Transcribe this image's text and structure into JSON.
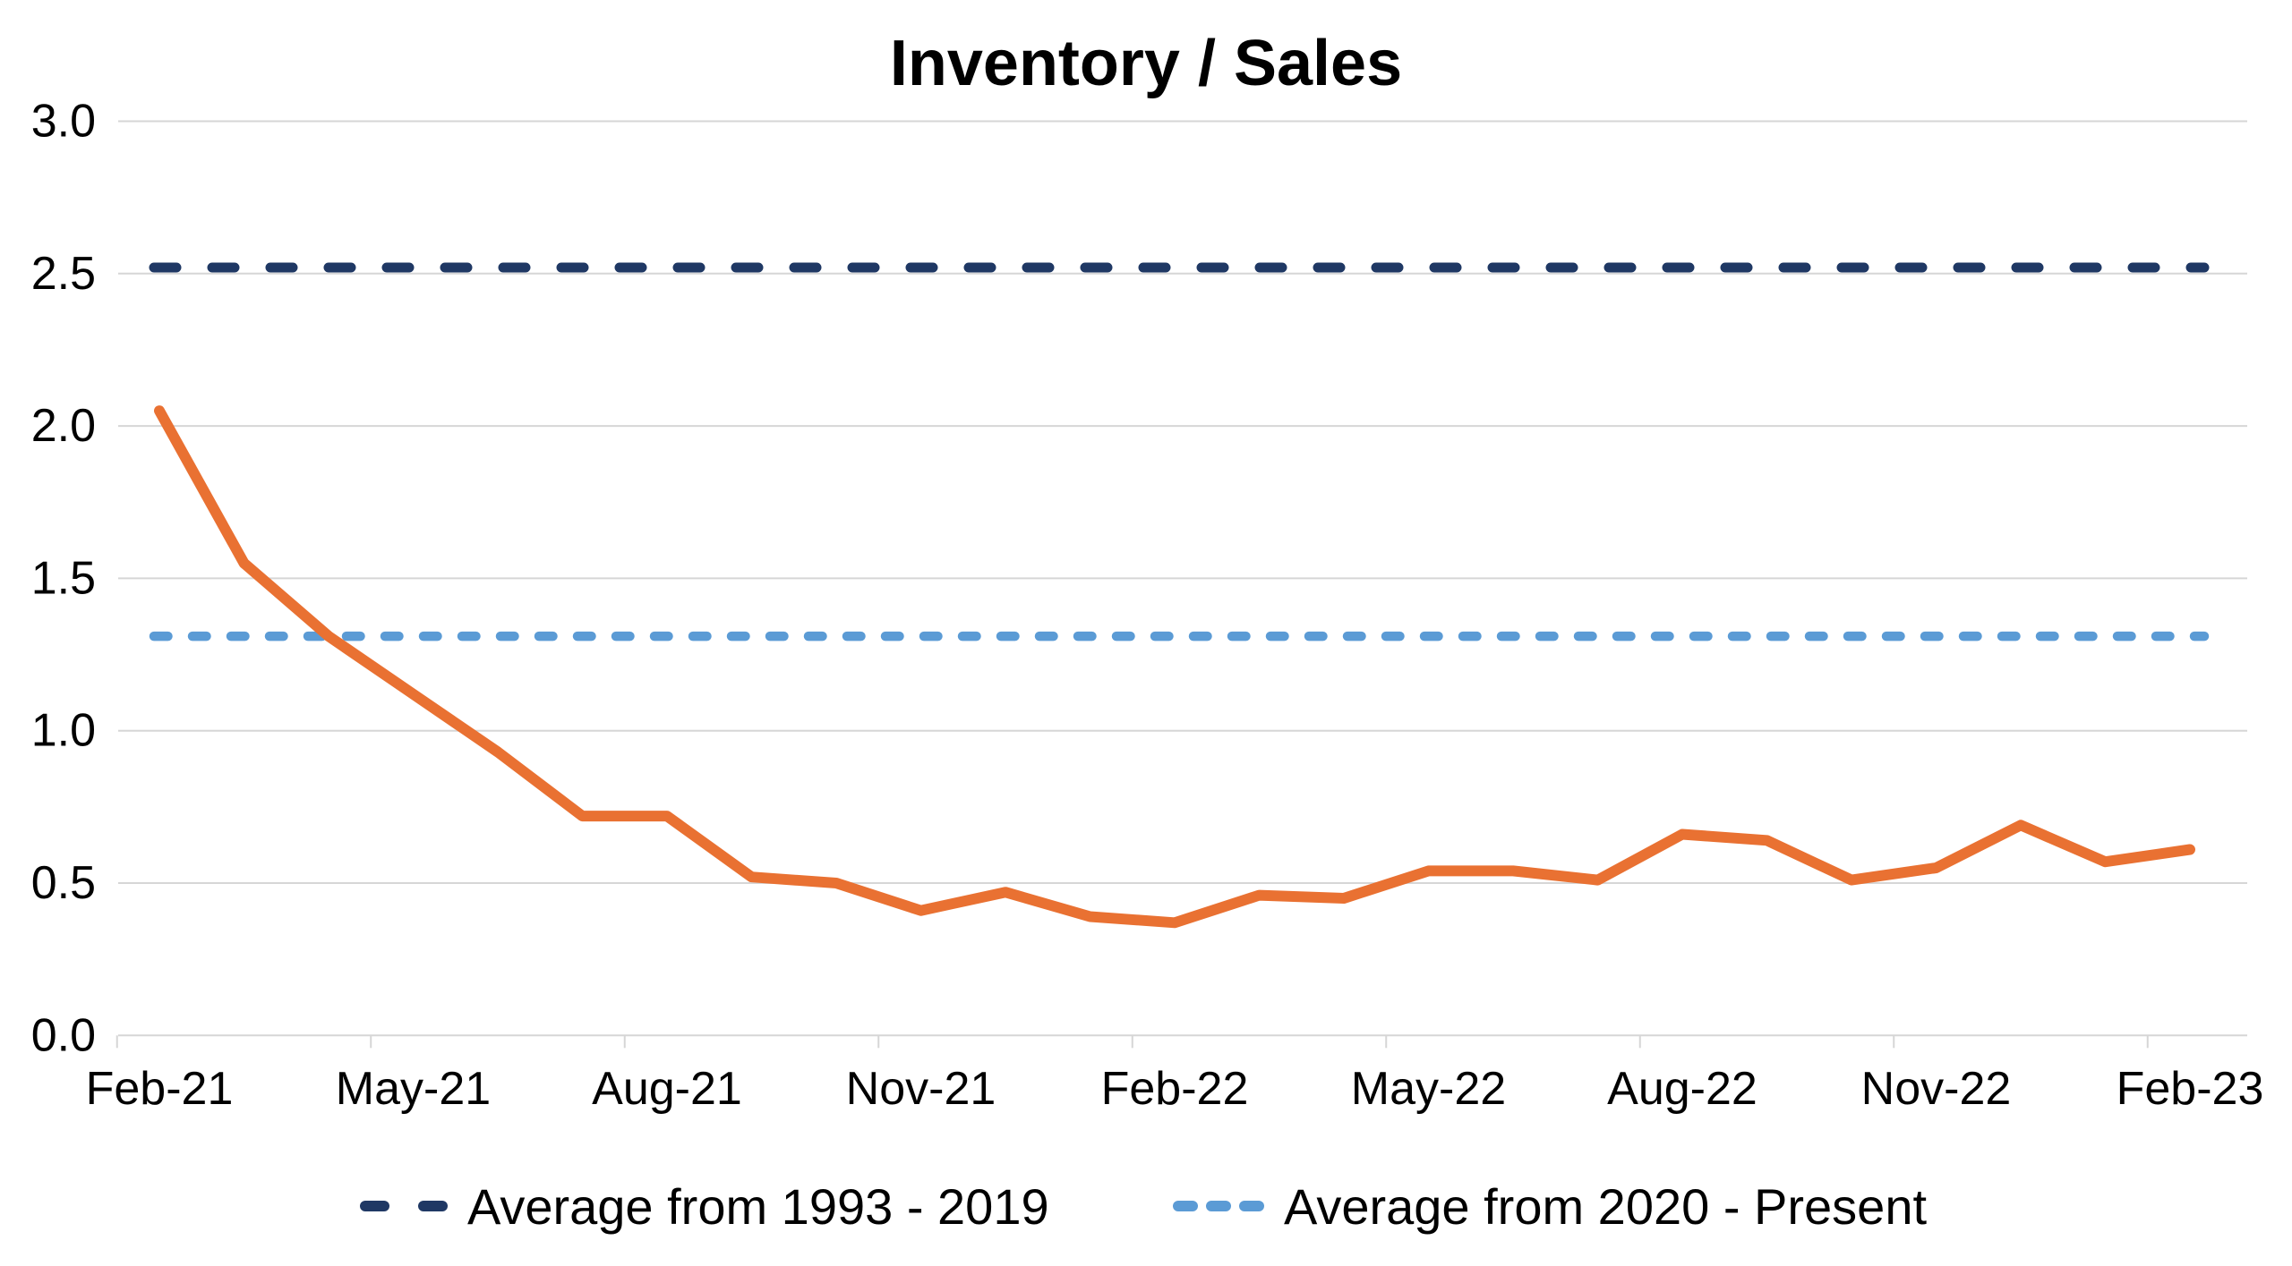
{
  "title": "Inventory / Sales",
  "legend": [
    {
      "label": "Average from 1993 - 2019",
      "color": "#1f3864",
      "dash": "long"
    },
    {
      "label": "Average from 2020 - Present",
      "color": "#5b9bd5",
      "dash": "short"
    }
  ],
  "colors": {
    "series_orange": "#e97132",
    "avg_1993_2019_navy": "#1f3864",
    "avg_2020_present_blue": "#5b9bd5",
    "gridline_gray": "#d6d6d6",
    "text_black": "#000000",
    "background": "#ffffff"
  },
  "chart_data": {
    "type": "line",
    "title": "Inventory / Sales",
    "x": [
      "Feb-21",
      "Mar-21",
      "Apr-21",
      "May-21",
      "Jun-21",
      "Jul-21",
      "Aug-21",
      "Sep-21",
      "Oct-21",
      "Nov-21",
      "Dec-21",
      "Jan-22",
      "Feb-22",
      "Mar-22",
      "Apr-22",
      "May-22",
      "Jun-22",
      "Jul-22",
      "Aug-22",
      "Sep-22",
      "Oct-22",
      "Nov-22",
      "Dec-22",
      "Jan-23",
      "Feb-23"
    ],
    "x_tick_labels": [
      "Feb-21",
      "May-21",
      "Aug-21",
      "Nov-21",
      "Feb-22",
      "May-22",
      "Aug-22",
      "Nov-22",
      "Feb-23"
    ],
    "x_tick_label_every_n_months": 3,
    "series": [
      {
        "name": "Inventory / Sales",
        "color": "#e97132",
        "values": [
          2.05,
          1.55,
          1.31,
          1.12,
          0.93,
          0.72,
          0.72,
          0.52,
          0.5,
          0.41,
          0.47,
          0.39,
          0.37,
          0.46,
          0.45,
          0.54,
          0.54,
          0.51,
          0.66,
          0.64,
          0.51,
          0.55,
          0.69,
          0.57,
          0.61
        ]
      }
    ],
    "reference_lines": [
      {
        "name": "Average from 1993 - 2019",
        "value": 2.52,
        "color": "#1f3864",
        "dash": "long"
      },
      {
        "name": "Average from 2020 - Present",
        "value": 1.31,
        "color": "#5b9bd5",
        "dash": "short"
      }
    ],
    "ylim": [
      0.0,
      3.0
    ],
    "ytick_step": 0.5,
    "y_tick_labels": [
      "0.0",
      "0.5",
      "1.0",
      "1.5",
      "2.0",
      "2.5",
      "3.0"
    ],
    "grid": "horizontal",
    "legend_position": "bottom",
    "xlabel": "",
    "ylabel": ""
  }
}
